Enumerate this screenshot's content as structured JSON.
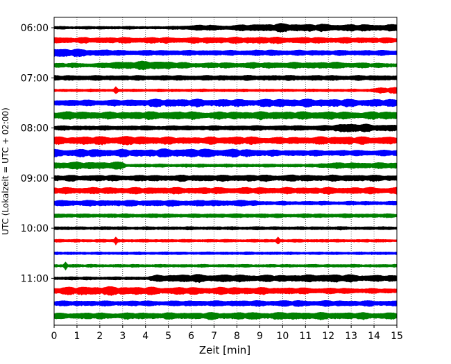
{
  "chart_data": {
    "type": "line",
    "title": "",
    "xlabel": "Zeit  [min]",
    "ylabel": "UTC (Lokalzeit = UTC + 02:00)",
    "xlim": [
      0,
      15
    ],
    "x_ticks": [
      0,
      1,
      2,
      3,
      4,
      5,
      6,
      7,
      8,
      9,
      10,
      11,
      12,
      13,
      14,
      15
    ],
    "x_tick_labels": [
      "0",
      "1",
      "2",
      "3",
      "4",
      "5",
      "6",
      "7",
      "8",
      "9",
      "10",
      "11",
      "12",
      "13",
      "14",
      "15"
    ],
    "y_tick_labels": [
      "06:00",
      "07:00",
      "08:00",
      "09:00",
      "10:00",
      "11:00"
    ],
    "grid": "vertical dotted lines at each minute",
    "legend": "none",
    "trace_start_hours": [
      6.0,
      6.25,
      6.5,
      6.75,
      7.0,
      7.25,
      7.5,
      7.75,
      8.0,
      8.25,
      8.5,
      8.75,
      9.0,
      9.25,
      9.5,
      9.75,
      10.0,
      10.25,
      10.5,
      10.75,
      11.0,
      11.25,
      11.5,
      11.75
    ],
    "trace_colors": [
      "#000000",
      "#ff0000",
      "#0000ff",
      "#008000"
    ],
    "amplitude_profiles": [
      [
        [
          0,
          1.2
        ],
        [
          5,
          1.2
        ],
        [
          6.5,
          3.5
        ],
        [
          7.5,
          2.5
        ],
        [
          8.5,
          4
        ],
        [
          9.5,
          5
        ],
        [
          10,
          5.5
        ],
        [
          11,
          4.5
        ],
        [
          12,
          4.5
        ],
        [
          13,
          4
        ],
        [
          15,
          4
        ]
      ],
      [
        [
          0,
          3.5
        ],
        [
          6,
          3.5
        ],
        [
          9,
          4
        ],
        [
          12,
          3.5
        ],
        [
          15,
          3
        ]
      ],
      [
        [
          0,
          5.5
        ],
        [
          3,
          3
        ],
        [
          8,
          3
        ],
        [
          9,
          3.5
        ],
        [
          12,
          3
        ],
        [
          15,
          3
        ]
      ],
      [
        [
          0,
          2.5
        ],
        [
          2,
          2.5
        ],
        [
          3,
          5
        ],
        [
          4.5,
          5.5
        ],
        [
          6,
          3
        ],
        [
          9,
          3.5
        ],
        [
          12.5,
          4
        ],
        [
          14,
          2.5
        ],
        [
          15,
          2.5
        ]
      ],
      [
        [
          0,
          2.8
        ],
        [
          5,
          2.8
        ],
        [
          10,
          3
        ],
        [
          15,
          2.8
        ]
      ],
      [
        [
          0,
          1.2
        ],
        [
          13.8,
          1.2
        ],
        [
          14.2,
          3.5
        ],
        [
          15,
          3.5
        ]
      ],
      [
        [
          0,
          3.5
        ],
        [
          3,
          4
        ],
        [
          5,
          5
        ],
        [
          8,
          4.5
        ],
        [
          10,
          5
        ],
        [
          15,
          4.5
        ]
      ],
      [
        [
          0,
          5
        ],
        [
          3,
          4.5
        ],
        [
          5,
          5
        ],
        [
          7,
          4.5
        ],
        [
          10,
          5
        ],
        [
          13,
          4.5
        ],
        [
          15,
          5
        ]
      ],
      [
        [
          0,
          2.5
        ],
        [
          6,
          2.5
        ],
        [
          12,
          3
        ],
        [
          13,
          6.5
        ],
        [
          14,
          4
        ],
        [
          15,
          4
        ]
      ],
      [
        [
          0,
          4.5
        ],
        [
          3,
          5.5
        ],
        [
          6,
          4
        ],
        [
          8,
          5
        ],
        [
          10,
          4
        ],
        [
          12,
          5
        ],
        [
          15,
          4.5
        ]
      ],
      [
        [
          0,
          5
        ],
        [
          4,
          4.5
        ],
        [
          5,
          5.5
        ],
        [
          8,
          5
        ],
        [
          10,
          3.5
        ],
        [
          15,
          3.5
        ]
      ],
      [
        [
          0,
          4.5
        ],
        [
          3,
          4.5
        ],
        [
          3.2,
          1.5
        ],
        [
          11.5,
          1.5
        ],
        [
          11.7,
          3.5
        ],
        [
          15,
          3.5
        ]
      ],
      [
        [
          0,
          3.5
        ],
        [
          5,
          3.5
        ],
        [
          10,
          4
        ],
        [
          15,
          3.5
        ]
      ],
      [
        [
          0,
          4
        ],
        [
          5,
          4
        ],
        [
          10,
          4
        ],
        [
          15,
          4
        ]
      ],
      [
        [
          0,
          3.5
        ],
        [
          8.8,
          3.5
        ],
        [
          9,
          2
        ],
        [
          15,
          2
        ]
      ],
      [
        [
          0,
          2
        ],
        [
          5,
          2
        ],
        [
          10,
          2
        ],
        [
          15,
          2
        ]
      ],
      [
        [
          0,
          1.5
        ],
        [
          5,
          1.5
        ],
        [
          10,
          1.5
        ],
        [
          15,
          1.5
        ]
      ],
      [
        [
          0,
          1.2
        ],
        [
          15,
          1.2
        ]
      ],
      [
        [
          0,
          1.2
        ],
        [
          15,
          1.2
        ]
      ],
      [
        [
          0,
          1.2
        ],
        [
          15,
          1.2
        ]
      ],
      [
        [
          0,
          1.5
        ],
        [
          4,
          1.5
        ],
        [
          4.5,
          4
        ],
        [
          6,
          5
        ],
        [
          8,
          4.5
        ],
        [
          10,
          4
        ],
        [
          12,
          5
        ],
        [
          14,
          4
        ],
        [
          15,
          3.5
        ]
      ],
      [
        [
          0,
          4.5
        ],
        [
          2,
          5.5
        ],
        [
          5,
          4.5
        ],
        [
          8,
          4.5
        ],
        [
          12,
          3.5
        ],
        [
          15,
          2.5
        ]
      ],
      [
        [
          0,
          3
        ],
        [
          5,
          3
        ],
        [
          10,
          3.5
        ],
        [
          15,
          3
        ]
      ],
      [
        [
          0,
          3.5
        ],
        [
          5,
          4
        ],
        [
          10,
          4.5
        ],
        [
          15,
          4
        ]
      ]
    ],
    "spike_events": [
      {
        "trace": 5,
        "minute": 2.7
      },
      {
        "trace": 9,
        "minute": 7.0
      },
      {
        "trace": 17,
        "minute": 2.7
      },
      {
        "trace": 17,
        "minute": 9.8
      },
      {
        "trace": 19,
        "minute": 0.5
      }
    ]
  }
}
